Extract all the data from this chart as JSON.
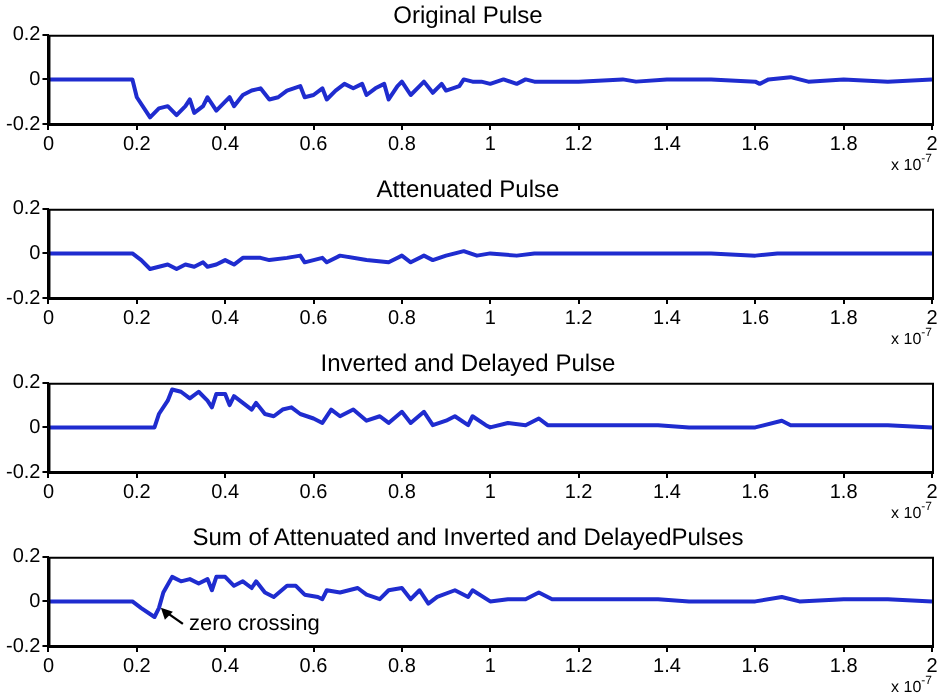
{
  "chart_data": [
    {
      "type": "line",
      "title": "Original Pulse",
      "xlabel": "x 10$^{-7}$",
      "xlim": [
        0,
        2
      ],
      "xticks": [
        0,
        0.2,
        0.4,
        0.6,
        0.8,
        1,
        1.2,
        1.4,
        1.6,
        1.8,
        2
      ],
      "ylim": [
        -0.2,
        0.2
      ],
      "yticks": [
        -0.2,
        0,
        0.2
      ],
      "x": [
        0,
        0.19,
        0.2,
        0.23,
        0.25,
        0.27,
        0.29,
        0.31,
        0.32,
        0.33,
        0.35,
        0.36,
        0.38,
        0.4,
        0.41,
        0.42,
        0.44,
        0.46,
        0.48,
        0.5,
        0.52,
        0.54,
        0.57,
        0.58,
        0.6,
        0.62,
        0.63,
        0.65,
        0.67,
        0.69,
        0.71,
        0.72,
        0.74,
        0.76,
        0.77,
        0.79,
        0.8,
        0.82,
        0.84,
        0.85,
        0.87,
        0.89,
        0.9,
        0.93,
        0.94,
        0.96,
        0.98,
        1.0,
        1.03,
        1.06,
        1.08,
        1.1,
        1.2,
        1.3,
        1.33,
        1.4,
        1.5,
        1.6,
        1.61,
        1.63,
        1.68,
        1.72,
        1.8,
        1.9,
        2.0
      ],
      "series": [
        {
          "color": "#1f2ccf",
          "values": [
            0,
            0,
            -0.08,
            -0.17,
            -0.13,
            -0.12,
            -0.16,
            -0.12,
            -0.09,
            -0.15,
            -0.12,
            -0.08,
            -0.14,
            -0.1,
            -0.08,
            -0.12,
            -0.07,
            -0.05,
            -0.04,
            -0.09,
            -0.08,
            -0.05,
            -0.03,
            -0.08,
            -0.07,
            -0.04,
            -0.09,
            -0.05,
            -0.02,
            -0.04,
            -0.02,
            -0.07,
            -0.04,
            -0.02,
            -0.09,
            -0.03,
            -0.01,
            -0.07,
            -0.03,
            -0.01,
            -0.06,
            -0.02,
            -0.05,
            -0.03,
            0,
            -0.01,
            -0.01,
            -0.02,
            0,
            -0.02,
            0,
            -0.01,
            -0.01,
            0,
            -0.01,
            0,
            0,
            -0.01,
            -0.02,
            0,
            0.01,
            -0.01,
            0,
            -0.01,
            0
          ]
        }
      ]
    },
    {
      "type": "line",
      "title": "Attenuated Pulse",
      "xlabel": "x 10$^{-7}$",
      "xlim": [
        0,
        2
      ],
      "xticks": [
        0,
        0.2,
        0.4,
        0.6,
        0.8,
        1,
        1.2,
        1.4,
        1.6,
        1.8,
        2
      ],
      "ylim": [
        -0.2,
        0.2
      ],
      "yticks": [
        -0.2,
        0,
        0.2
      ],
      "x": [
        0,
        0.19,
        0.21,
        0.23,
        0.25,
        0.27,
        0.29,
        0.31,
        0.33,
        0.35,
        0.36,
        0.38,
        0.4,
        0.42,
        0.44,
        0.48,
        0.5,
        0.54,
        0.57,
        0.58,
        0.62,
        0.63,
        0.66,
        0.72,
        0.77,
        0.8,
        0.82,
        0.85,
        0.87,
        0.9,
        0.94,
        0.97,
        1.0,
        1.06,
        1.1,
        1.5,
        1.6,
        1.65,
        2.0
      ],
      "series": [
        {
          "color": "#1f2ccf",
          "values": [
            0,
            0,
            -0.03,
            -0.07,
            -0.06,
            -0.05,
            -0.07,
            -0.05,
            -0.06,
            -0.04,
            -0.06,
            -0.05,
            -0.03,
            -0.05,
            -0.02,
            -0.02,
            -0.03,
            -0.02,
            -0.01,
            -0.04,
            -0.02,
            -0.04,
            -0.01,
            -0.03,
            -0.04,
            -0.01,
            -0.04,
            -0.01,
            -0.03,
            -0.01,
            0.01,
            -0.01,
            0,
            -0.01,
            0,
            0,
            -0.01,
            0,
            0
          ]
        }
      ]
    },
    {
      "type": "line",
      "title": "Inverted and Delayed Pulse",
      "xlabel": "x 10$^{-7}$",
      "xlim": [
        0,
        2
      ],
      "xticks": [
        0,
        0.2,
        0.4,
        0.6,
        0.8,
        1,
        1.2,
        1.4,
        1.6,
        1.8,
        2
      ],
      "ylim": [
        -0.2,
        0.2
      ],
      "yticks": [
        -0.2,
        0,
        0.2
      ],
      "x": [
        0,
        0.24,
        0.25,
        0.27,
        0.28,
        0.3,
        0.32,
        0.34,
        0.36,
        0.37,
        0.38,
        0.4,
        0.41,
        0.42,
        0.44,
        0.46,
        0.47,
        0.49,
        0.51,
        0.53,
        0.55,
        0.57,
        0.6,
        0.62,
        0.64,
        0.66,
        0.69,
        0.72,
        0.75,
        0.77,
        0.8,
        0.82,
        0.85,
        0.87,
        0.9,
        0.92,
        0.95,
        0.96,
        0.99,
        1.0,
        1.04,
        1.08,
        1.11,
        1.13,
        1.2,
        1.3,
        1.38,
        1.45,
        1.6,
        1.66,
        1.68,
        1.8,
        1.9,
        2.0
      ],
      "series": [
        {
          "color": "#1f2ccf",
          "values": [
            0,
            0,
            0.06,
            0.12,
            0.17,
            0.16,
            0.13,
            0.16,
            0.12,
            0.09,
            0.15,
            0.15,
            0.1,
            0.14,
            0.11,
            0.08,
            0.11,
            0.06,
            0.05,
            0.08,
            0.09,
            0.06,
            0.04,
            0.02,
            0.08,
            0.05,
            0.08,
            0.03,
            0.05,
            0.02,
            0.07,
            0.02,
            0.07,
            0.01,
            0.03,
            0.05,
            0.01,
            0.05,
            0.01,
            0,
            0.02,
            0.01,
            0.04,
            0.01,
            0.01,
            0.01,
            0.01,
            0,
            0,
            0.03,
            0.01,
            0.01,
            0.01,
            0
          ]
        }
      ]
    },
    {
      "type": "line",
      "title": "Sum of Attenuated and Inverted and DelayedPulses",
      "xlabel": "x 10$^{-7}$",
      "xlim": [
        0,
        2
      ],
      "xticks": [
        0,
        0.2,
        0.4,
        0.6,
        0.8,
        1,
        1.2,
        1.4,
        1.6,
        1.8,
        2
      ],
      "ylim": [
        -0.2,
        0.2
      ],
      "yticks": [
        -0.2,
        0,
        0.2
      ],
      "annotations": [
        {
          "text": "zero crossing",
          "x": 0.25,
          "y": -0.02
        }
      ],
      "x": [
        0,
        0.19,
        0.21,
        0.24,
        0.25,
        0.26,
        0.28,
        0.3,
        0.32,
        0.34,
        0.36,
        0.37,
        0.38,
        0.4,
        0.42,
        0.44,
        0.46,
        0.47,
        0.49,
        0.51,
        0.54,
        0.56,
        0.58,
        0.61,
        0.62,
        0.63,
        0.66,
        0.68,
        0.7,
        0.72,
        0.75,
        0.77,
        0.8,
        0.82,
        0.84,
        0.86,
        0.88,
        0.92,
        0.95,
        0.96,
        1.0,
        1.04,
        1.08,
        1.11,
        1.14,
        1.2,
        1.3,
        1.38,
        1.45,
        1.6,
        1.66,
        1.7,
        1.8,
        1.9,
        2.0
      ],
      "series": [
        {
          "color": "#1f2ccf",
          "values": [
            0,
            0,
            -0.03,
            -0.07,
            -0.03,
            0.04,
            0.11,
            0.09,
            0.1,
            0.08,
            0.1,
            0.05,
            0.11,
            0.11,
            0.07,
            0.09,
            0.06,
            0.09,
            0.04,
            0.02,
            0.07,
            0.07,
            0.03,
            0.02,
            0.01,
            0.05,
            0.04,
            0.05,
            0.06,
            0.03,
            0.01,
            0.05,
            0.06,
            0.01,
            0.05,
            -0.01,
            0.02,
            0.05,
            0.02,
            0.05,
            0,
            0.01,
            0.01,
            0.04,
            0.01,
            0.01,
            0.01,
            0.01,
            0,
            0,
            0.02,
            0,
            0.01,
            0.01,
            0
          ]
        }
      ]
    }
  ]
}
